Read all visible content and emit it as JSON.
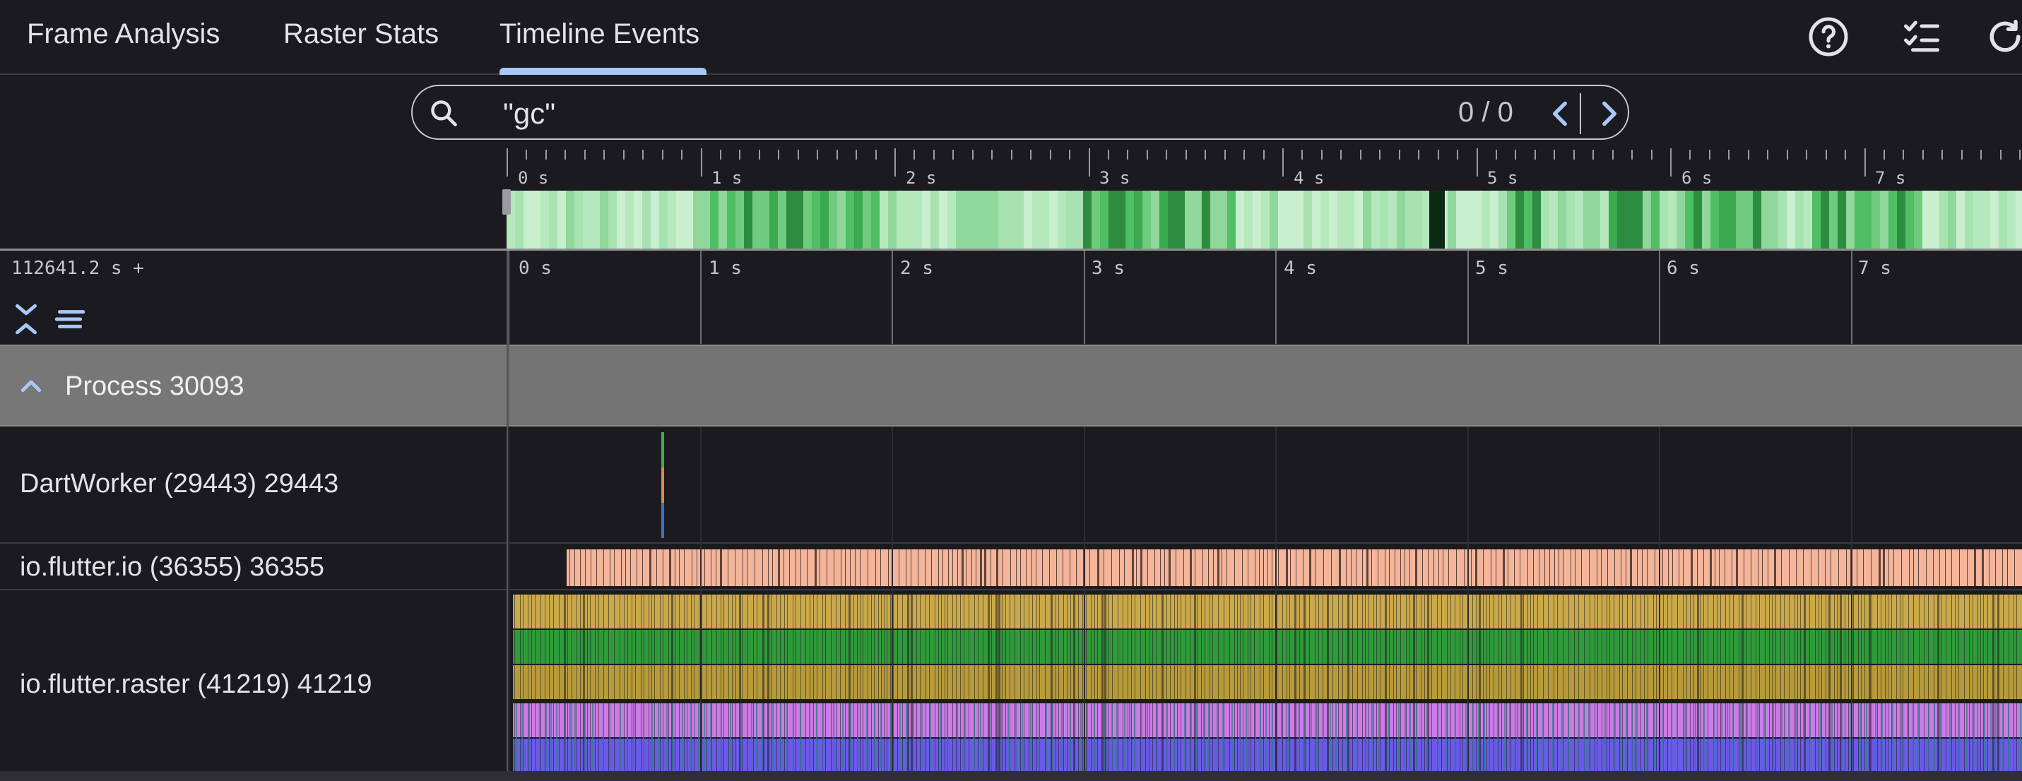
{
  "tabs": [
    {
      "label": "Frame Analysis"
    },
    {
      "label": "Raster Stats"
    },
    {
      "label": "Timeline Events",
      "selected": true
    }
  ],
  "toolbar": {
    "icons": [
      "help-icon",
      "checklist-icon",
      "refresh-icon"
    ]
  },
  "search": {
    "value": "\"gc\"",
    "match_count": "0 / 0"
  },
  "overview": {
    "tick_labels": [
      "0 s",
      "1 s",
      "2 s",
      "3 s",
      "4 s",
      "5 s",
      "6 s",
      "7 s"
    ]
  },
  "timeline": {
    "offset_label": "112641.2 s +",
    "tick_labels": [
      "0 s",
      "1 s",
      "2 s",
      "3 s",
      "4 s",
      "5 s",
      "6 s",
      "7 s"
    ]
  },
  "process": {
    "label": "Process 30093"
  },
  "threads": [
    {
      "label": "DartWorker (29443) 29443"
    },
    {
      "label": "io.flutter.io (36355) 36355"
    },
    {
      "label": "io.flutter.raster (41219) 41219"
    }
  ],
  "colors": {
    "accent": "#a8c7fa",
    "io_event": "#f4b59a",
    "raster_layers": [
      "#c9a94a",
      "#2f9a3a",
      "#b79a3a",
      "#cc7be6",
      "#6a5ae6"
    ]
  }
}
